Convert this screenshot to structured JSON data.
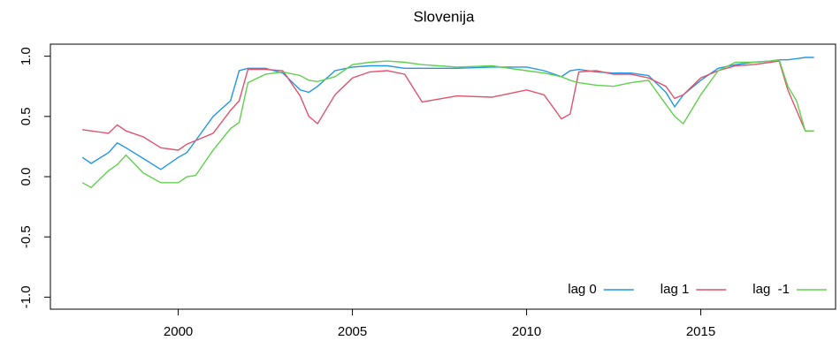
{
  "chart_data": {
    "type": "line",
    "title": "Slovenija",
    "x": [
      1997.25,
      1997.5,
      1998,
      1998.25,
      1998.5,
      1999,
      1999.5,
      2000,
      2000.25,
      2000.5,
      2001,
      2001.5,
      2001.75,
      2002,
      2002.5,
      2003,
      2003.5,
      2003.75,
      2004,
      2004.5,
      2005,
      2005.5,
      2006,
      2006.5,
      2007,
      2008,
      2009,
      2010,
      2010.5,
      2011,
      2011.25,
      2011.5,
      2012,
      2012.5,
      2013,
      2013.5,
      2014,
      2014.25,
      2014.5,
      2015,
      2015.5,
      2016,
      2016.5,
      2017,
      2017.25,
      2017.5,
      2017.75,
      2018,
      2018.25
    ],
    "series": [
      {
        "name": "lag 0",
        "color": "#2297e6",
        "values": [
          0.16,
          0.11,
          0.2,
          0.28,
          0.24,
          0.15,
          0.06,
          0.16,
          0.2,
          0.3,
          0.5,
          0.63,
          0.88,
          0.9,
          0.9,
          0.86,
          0.72,
          0.7,
          0.75,
          0.88,
          0.91,
          0.92,
          0.92,
          0.9,
          0.9,
          0.9,
          0.91,
          0.91,
          0.88,
          0.83,
          0.88,
          0.89,
          0.87,
          0.86,
          0.86,
          0.84,
          0.7,
          0.58,
          0.68,
          0.8,
          0.9,
          0.93,
          0.95,
          0.96,
          0.97,
          0.97,
          0.98,
          0.99,
          0.99
        ]
      },
      {
        "name": "lag 1",
        "color": "#df536b",
        "values": [
          0.39,
          0.38,
          0.36,
          0.43,
          0.38,
          0.33,
          0.24,
          0.22,
          0.27,
          0.3,
          0.36,
          0.55,
          0.63,
          0.89,
          0.89,
          0.88,
          0.67,
          0.5,
          0.44,
          0.68,
          0.82,
          0.87,
          0.88,
          0.85,
          0.62,
          0.67,
          0.66,
          0.72,
          0.68,
          0.48,
          0.52,
          0.87,
          0.88,
          0.85,
          0.85,
          0.82,
          0.75,
          0.65,
          0.68,
          0.82,
          0.88,
          0.92,
          0.93,
          0.95,
          0.96,
          0.72,
          0.55,
          0.38,
          0.38
        ]
      },
      {
        "name": "lag  -1",
        "color": "#61d04f",
        "values": [
          -0.05,
          -0.09,
          0.05,
          0.1,
          0.18,
          0.03,
          -0.05,
          -0.05,
          0.0,
          0.01,
          0.22,
          0.4,
          0.45,
          0.78,
          0.85,
          0.87,
          0.84,
          0.8,
          0.79,
          0.83,
          0.93,
          0.95,
          0.96,
          0.95,
          0.93,
          0.91,
          0.92,
          0.88,
          0.86,
          0.83,
          0.8,
          0.78,
          0.76,
          0.75,
          0.78,
          0.8,
          0.6,
          0.5,
          0.44,
          0.68,
          0.88,
          0.95,
          0.95,
          0.96,
          0.97,
          0.75,
          0.63,
          0.38,
          0.38
        ]
      }
    ],
    "xlim": [
      1996.33,
      2018.87
    ],
    "xticks": [
      2000,
      2005,
      2010,
      2015
    ],
    "ylim": [
      -1.1,
      1.1
    ],
    "yticks": [
      {
        "value": -1,
        "label": "-1.0"
      },
      {
        "value": -0.5,
        "label": "-0.5"
      },
      {
        "value": 0,
        "label": "0.0"
      },
      {
        "value": 0.5,
        "label": "0.5"
      },
      {
        "value": 1,
        "label": "1.0"
      }
    ],
    "legend": "bottom-right"
  }
}
